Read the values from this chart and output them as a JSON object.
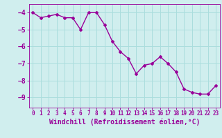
{
  "x": [
    0,
    1,
    2,
    3,
    4,
    5,
    6,
    7,
    8,
    9,
    10,
    11,
    12,
    13,
    14,
    15,
    16,
    17,
    18,
    19,
    20,
    21,
    22,
    23
  ],
  "y": [
    -4.0,
    -4.3,
    -4.2,
    -4.1,
    -4.3,
    -4.3,
    -5.0,
    -4.0,
    -4.0,
    -4.7,
    -5.7,
    -6.3,
    -6.7,
    -7.6,
    -7.1,
    -7.0,
    -6.6,
    -7.0,
    -7.5,
    -8.5,
    -8.7,
    -8.8,
    -8.8,
    -8.3
  ],
  "line_color": "#990099",
  "marker": "D",
  "markersize": 2,
  "linewidth": 1.0,
  "xlabel": "Windchill (Refroidissement éolien,°C)",
  "xlim": [
    -0.5,
    23.5
  ],
  "ylim": [
    -9.6,
    -3.5
  ],
  "yticks": [
    -4,
    -5,
    -6,
    -7,
    -8,
    -9
  ],
  "xticks": [
    0,
    1,
    2,
    3,
    4,
    5,
    6,
    7,
    8,
    9,
    10,
    11,
    12,
    13,
    14,
    15,
    16,
    17,
    18,
    19,
    20,
    21,
    22,
    23
  ],
  "grid_color": "#aadddd",
  "bg_color": "#d0eeee",
  "tick_color": "#990099",
  "label_color": "#990099",
  "tick_fontsize": 5.5,
  "ylabel_fontsize": 7.0,
  "xlabel_fontsize": 7.0
}
